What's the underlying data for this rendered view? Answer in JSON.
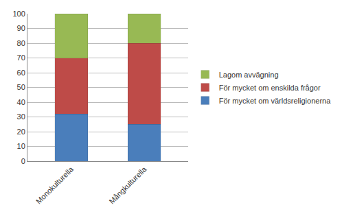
{
  "chart_data": {
    "type": "bar",
    "stacked": true,
    "grid": true,
    "legend": "right",
    "categories": [
      "Monokulturella",
      "Mångkulturella"
    ],
    "series": [
      {
        "name": "För mycket om världsreligionerna",
        "color": "#4a7ebb",
        "values": [
          32,
          25
        ]
      },
      {
        "name": "För mycket om enskilda frågor",
        "color": "#be4b48",
        "values": [
          38,
          55
        ]
      },
      {
        "name": "Lagom avvägning",
        "color": "#98b954",
        "values": [
          30,
          20
        ]
      }
    ],
    "ylim": [
      0,
      100
    ],
    "yticks": [
      0,
      10,
      20,
      30,
      40,
      50,
      60,
      70,
      80,
      90,
      100
    ]
  }
}
